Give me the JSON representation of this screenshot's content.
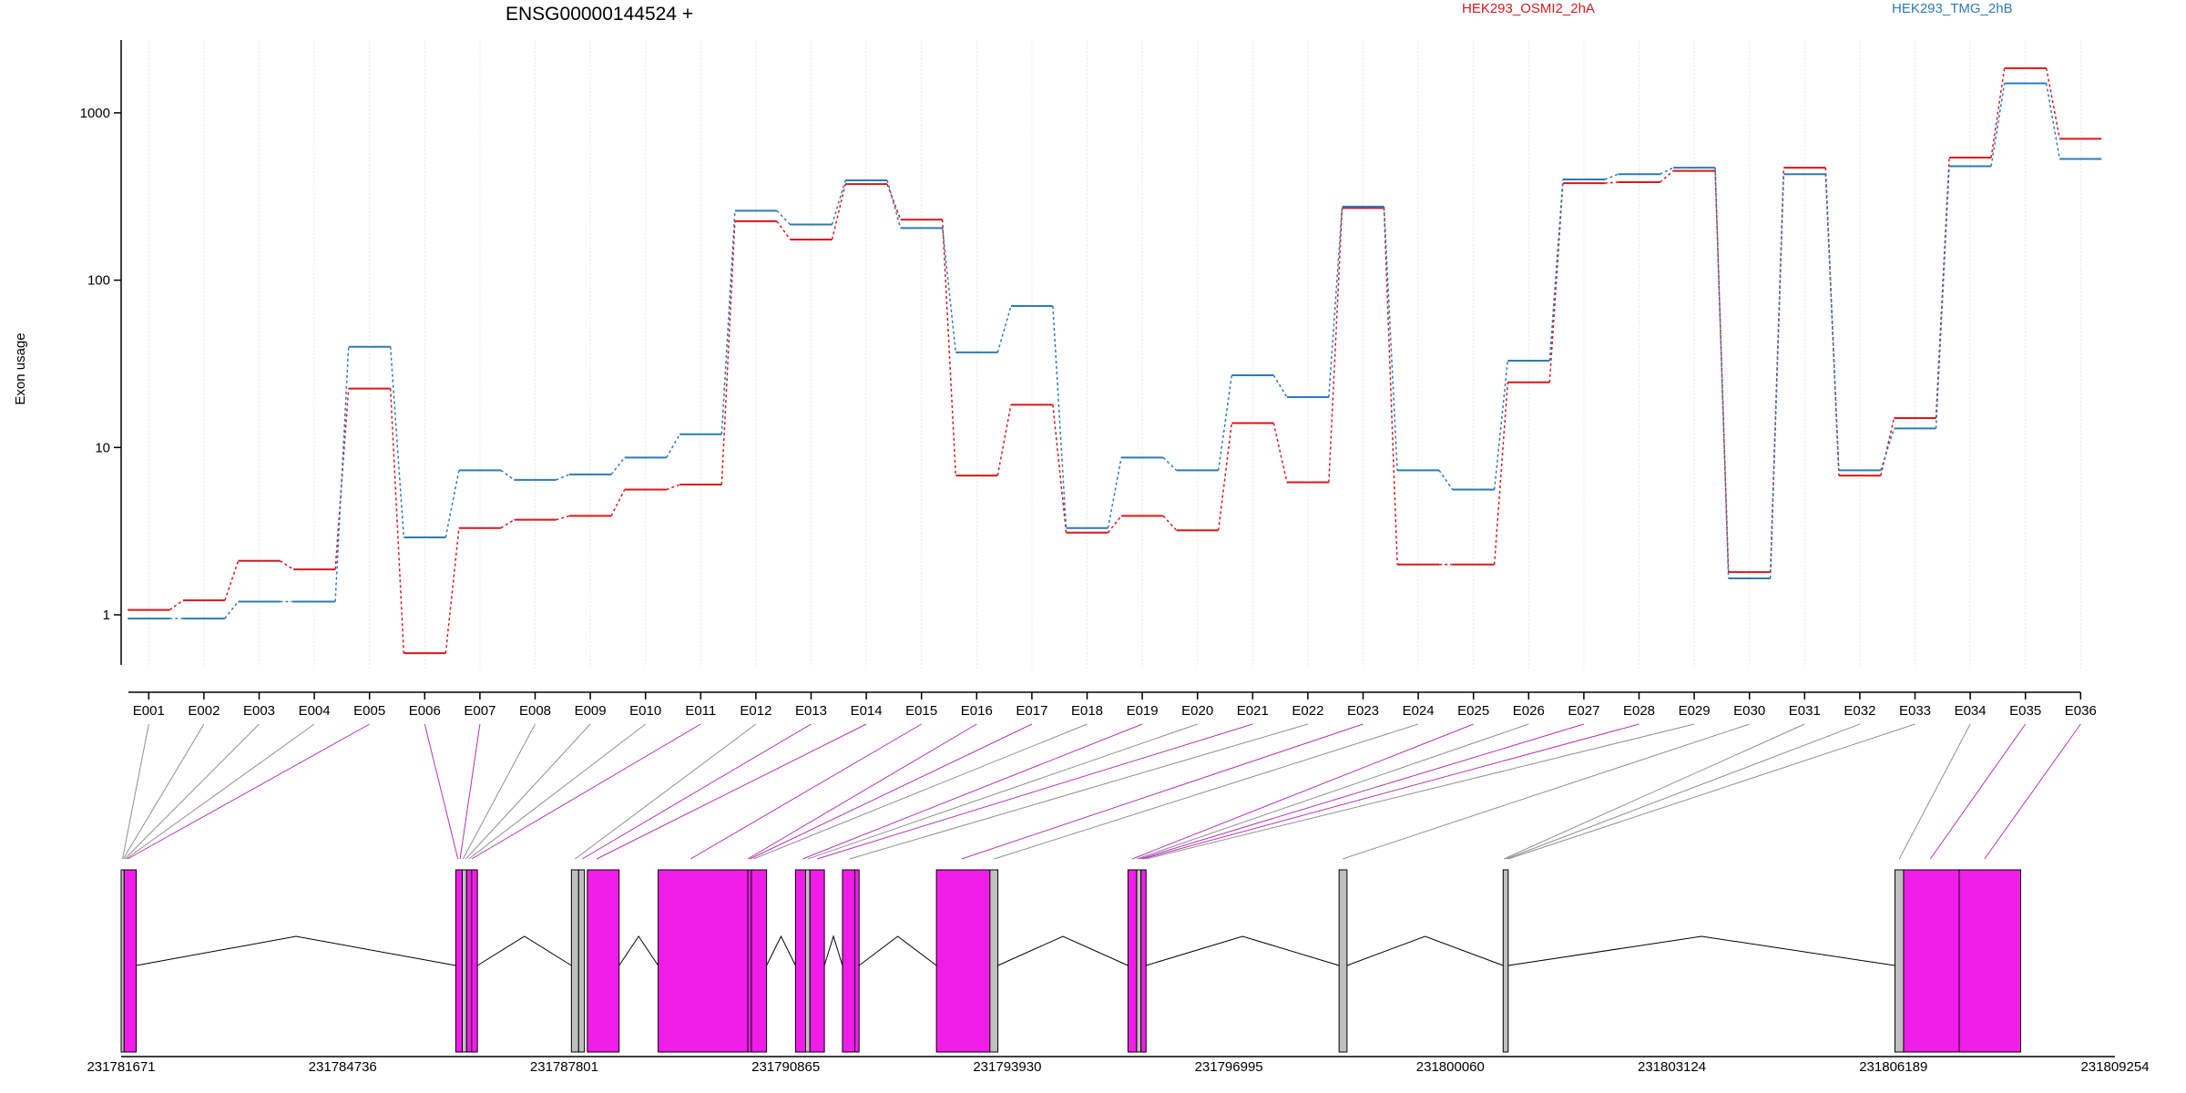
{
  "chart_data": {
    "type": "line",
    "title": "ENSG00000144524 +",
    "ylabel": "Exon usage",
    "xlabel": "",
    "yscale": "log",
    "ylim": [
      0.55,
      2600
    ],
    "grid": true,
    "legend_placement": "top",
    "yticks": [
      1,
      10,
      100,
      1000
    ],
    "categories": [
      "E001",
      "E002",
      "E003",
      "E004",
      "E005",
      "E006",
      "E007",
      "E008",
      "E009",
      "E010",
      "E011",
      "E012",
      "E013",
      "E014",
      "E015",
      "E016",
      "E017",
      "E018",
      "E019",
      "E020",
      "E021",
      "E022",
      "E023",
      "E024",
      "E025",
      "E026",
      "E027",
      "E028",
      "E029",
      "E030",
      "E031",
      "E032",
      "E033",
      "E034",
      "E035",
      "E036"
    ],
    "series": [
      {
        "name": "HEK293_OSMI2_2hA",
        "color": "#d7191c",
        "values": [
          1.07,
          1.22,
          2.1,
          1.87,
          22.5,
          0.59,
          3.3,
          3.7,
          3.9,
          5.6,
          6.0,
          225,
          175,
          375,
          230,
          6.8,
          18,
          3.1,
          3.9,
          3.2,
          14,
          6.2,
          270,
          2.0,
          2.0,
          24.5,
          380,
          385,
          450,
          1.8,
          470,
          6.8,
          15,
          540,
          1850,
          700
        ]
      },
      {
        "name": "HEK293_TMG_2hB",
        "color": "#2c7bb6",
        "values": [
          0.95,
          0.95,
          1.2,
          1.2,
          40,
          2.9,
          7.3,
          6.4,
          6.9,
          8.7,
          12,
          260,
          215,
          395,
          205,
          37,
          70,
          3.3,
          8.7,
          7.3,
          27,
          20,
          275,
          7.3,
          5.6,
          33,
          400,
          430,
          470,
          1.65,
          430,
          7.3,
          13,
          480,
          1500,
          530
        ]
      }
    ]
  },
  "gene_model": {
    "coordinate_labels": [
      "231781671",
      "231784736",
      "231787801",
      "231790865",
      "231793930",
      "231796995",
      "231800060",
      "231803124",
      "231806189",
      "231809254"
    ],
    "colors": {
      "significant": "#f01de8",
      "not_significant": "#c0c0c0",
      "edge": "#000000"
    },
    "exons": [
      {
        "start": 231781671,
        "end": 231781712,
        "state": "not_significant"
      },
      {
        "start": 231781712,
        "end": 231781880,
        "state": "significant"
      },
      {
        "start": 231786300,
        "end": 231786390,
        "state": "significant"
      },
      {
        "start": 231786390,
        "end": 231786450,
        "state": "not_significant"
      },
      {
        "start": 231786450,
        "end": 231786520,
        "state": "significant"
      },
      {
        "start": 231786520,
        "end": 231786600,
        "state": "significant"
      },
      {
        "start": 231787900,
        "end": 231788000,
        "state": "not_significant"
      },
      {
        "start": 231788000,
        "end": 231788080,
        "state": "not_significant"
      },
      {
        "start": 231788120,
        "end": 231788560,
        "state": "significant"
      },
      {
        "start": 231789100,
        "end": 231790340,
        "state": "significant"
      },
      {
        "start": 231790340,
        "end": 231790390,
        "state": "significant"
      },
      {
        "start": 231790390,
        "end": 231790600,
        "state": "significant"
      },
      {
        "start": 231791000,
        "end": 231791140,
        "state": "significant"
      },
      {
        "start": 231791140,
        "end": 231791200,
        "state": "not_significant"
      },
      {
        "start": 231791200,
        "end": 231791400,
        "state": "significant"
      },
      {
        "start": 231791650,
        "end": 231791820,
        "state": "significant"
      },
      {
        "start": 231791820,
        "end": 231791880,
        "state": "significant"
      },
      {
        "start": 231792950,
        "end": 231793690,
        "state": "significant"
      },
      {
        "start": 231793690,
        "end": 231793800,
        "state": "not_significant"
      },
      {
        "start": 231795600,
        "end": 231795720,
        "state": "significant"
      },
      {
        "start": 231795720,
        "end": 231795780,
        "state": "not_significant"
      },
      {
        "start": 231795780,
        "end": 231795850,
        "state": "significant"
      },
      {
        "start": 231798520,
        "end": 231798630,
        "state": "not_significant"
      },
      {
        "start": 231800790,
        "end": 231800860,
        "state": "not_significant"
      },
      {
        "start": 231806210,
        "end": 231806330,
        "state": "not_significant"
      },
      {
        "start": 231806330,
        "end": 231807100,
        "state": "significant"
      },
      {
        "start": 231807100,
        "end": 231807950,
        "state": "significant"
      }
    ],
    "connectors": [
      {
        "exon": "E001",
        "genomic": 231781690,
        "state": "not_significant"
      },
      {
        "exon": "E002",
        "genomic": 231781700,
        "state": "not_significant"
      },
      {
        "exon": "E003",
        "genomic": 231781720,
        "state": "not_significant"
      },
      {
        "exon": "E004",
        "genomic": 231781740,
        "state": "not_significant"
      },
      {
        "exon": "E005",
        "genomic": 231781760,
        "state": "significant"
      },
      {
        "exon": "E006",
        "genomic": 231786330,
        "state": "significant"
      },
      {
        "exon": "E007",
        "genomic": 231786360,
        "state": "significant"
      },
      {
        "exon": "E008",
        "genomic": 231786400,
        "state": "not_significant"
      },
      {
        "exon": "E009",
        "genomic": 231786440,
        "state": "not_significant"
      },
      {
        "exon": "E010",
        "genomic": 231786480,
        "state": "not_significant"
      },
      {
        "exon": "E011",
        "genomic": 231786520,
        "state": "significant"
      },
      {
        "exon": "E012",
        "genomic": 231787950,
        "state": "not_significant"
      },
      {
        "exon": "E013",
        "genomic": 231788050,
        "state": "significant"
      },
      {
        "exon": "E014",
        "genomic": 231788250,
        "state": "significant"
      },
      {
        "exon": "E015",
        "genomic": 231789550,
        "state": "significant"
      },
      {
        "exon": "E016",
        "genomic": 231790340,
        "state": "significant"
      },
      {
        "exon": "E017",
        "genomic": 231790370,
        "state": "significant"
      },
      {
        "exon": "E018",
        "genomic": 231790420,
        "state": "not_significant"
      },
      {
        "exon": "E019",
        "genomic": 231791100,
        "state": "significant"
      },
      {
        "exon": "E020",
        "genomic": 231791170,
        "state": "not_significant"
      },
      {
        "exon": "E021",
        "genomic": 231791300,
        "state": "significant"
      },
      {
        "exon": "E022",
        "genomic": 231791750,
        "state": "not_significant"
      },
      {
        "exon": "E023",
        "genomic": 231793300,
        "state": "significant"
      },
      {
        "exon": "E024",
        "genomic": 231793750,
        "state": "not_significant"
      },
      {
        "exon": "E025",
        "genomic": 231795660,
        "state": "significant"
      },
      {
        "exon": "E026",
        "genomic": 231795720,
        "state": "not_significant"
      },
      {
        "exon": "E027",
        "genomic": 231795760,
        "state": "significant"
      },
      {
        "exon": "E028",
        "genomic": 231795800,
        "state": "significant"
      },
      {
        "exon": "E029",
        "genomic": 231795850,
        "state": "not_significant"
      },
      {
        "exon": "E030",
        "genomic": 231798570,
        "state": "not_significant"
      },
      {
        "exon": "E031",
        "genomic": 231800800,
        "state": "not_significant"
      },
      {
        "exon": "E032",
        "genomic": 231800830,
        "state": "not_significant"
      },
      {
        "exon": "E033",
        "genomic": 231800860,
        "state": "not_significant"
      },
      {
        "exon": "E034",
        "genomic": 231806270,
        "state": "not_significant"
      },
      {
        "exon": "E035",
        "genomic": 231806700,
        "state": "significant"
      },
      {
        "exon": "E036",
        "genomic": 231807450,
        "state": "significant"
      }
    ]
  }
}
